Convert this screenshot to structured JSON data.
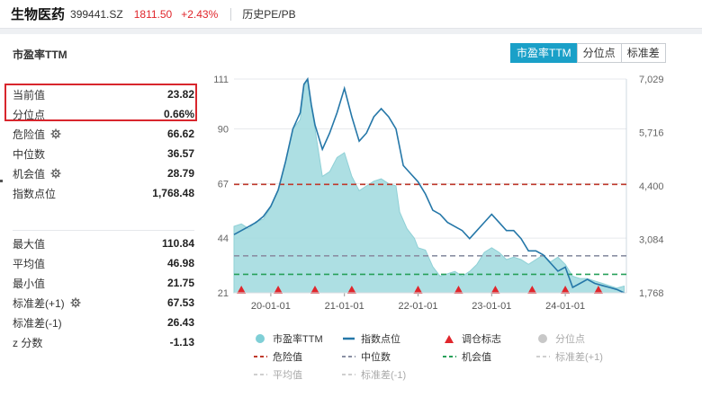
{
  "header": {
    "name": "生物医药",
    "code": "399441.SZ",
    "price": "1811.50",
    "change": "+2.43%",
    "history_link": "历史PE/PB"
  },
  "section_title": "市盈率TTM",
  "tabs": [
    "市盈率TTM",
    "分位点",
    "标准差"
  ],
  "stats_top": [
    {
      "label": "当前值",
      "value": "23.82",
      "gear": false
    },
    {
      "label": "分位点",
      "value": "0.66%",
      "gear": false
    },
    {
      "label": "危险值",
      "value": "66.62",
      "gear": true
    },
    {
      "label": "中位数",
      "value": "36.57",
      "gear": false
    },
    {
      "label": "机会值",
      "value": "28.79",
      "gear": true
    },
    {
      "label": "指数点位",
      "value": "1,768.48",
      "gear": false
    }
  ],
  "stats_bottom": [
    {
      "label": "最大值",
      "value": "110.84",
      "gear": false
    },
    {
      "label": "平均值",
      "value": "46.98",
      "gear": false
    },
    {
      "label": "最小值",
      "value": "21.75",
      "gear": false
    },
    {
      "label": "标准差(+1)",
      "value": "67.53",
      "gear": true
    },
    {
      "label": "标准差(-1)",
      "value": "26.43",
      "gear": false
    },
    {
      "label": "z 分数",
      "value": "-1.13",
      "gear": false
    }
  ],
  "legend": [
    {
      "label": "市盈率TTM",
      "kind": "dot",
      "color": "#7fcfd6",
      "dim": false
    },
    {
      "label": "指数点位",
      "kind": "line",
      "color": "#2577a8",
      "dim": false
    },
    {
      "label": "调仓标志",
      "kind": "triangle",
      "color": "#e0262c",
      "dim": false
    },
    {
      "label": "分位点",
      "kind": "dot",
      "color": "#c8c8c8",
      "dim": true
    },
    {
      "label": "危险值",
      "kind": "dash",
      "color": "#c0392b",
      "dim": false
    },
    {
      "label": "中位数",
      "kind": "dash",
      "color": "#8a8fa3",
      "dim": false
    },
    {
      "label": "机会值",
      "kind": "dash",
      "color": "#27a05a",
      "dim": false
    },
    {
      "label": "标准差(+1)",
      "kind": "dash",
      "color": "#cfcfcf",
      "dim": true
    },
    {
      "label": "平均值",
      "kind": "dash",
      "color": "#cfcfcf",
      "dim": true
    },
    {
      "label": "标准差(-1)",
      "kind": "dash",
      "color": "#cfcfcf",
      "dim": true
    }
  ],
  "colors": {
    "accent": "#1aa0c8",
    "up": "#e0262c",
    "pe_fill": "#9fd9de",
    "index_line": "#2577a8",
    "danger": "#c0392b",
    "median": "#8a8fa3",
    "opportunity": "#27a05a"
  },
  "chart_data": {
    "type": "area",
    "x_ticks": [
      "20-01-01",
      "21-01-01",
      "22-01-01",
      "23-01-01",
      "24-01-01"
    ],
    "y_left_ticks": [
      "21",
      "44",
      "67",
      "90",
      "111"
    ],
    "y_right_ticks": [
      "1,768",
      "3,084",
      "4,400",
      "5,716",
      "7,029"
    ],
    "y_left_range": [
      21,
      111
    ],
    "y_right_range": [
      1768,
      7029
    ],
    "x_range": [
      2019.5,
      2024.83
    ],
    "reference_lines": [
      {
        "name": "危险值",
        "value": 66.62,
        "color": "#c0392b"
      },
      {
        "name": "中位数",
        "value": 36.57,
        "color": "#8a8fa3"
      },
      {
        "name": "机会值",
        "value": 28.79,
        "color": "#27a05a"
      }
    ],
    "series": [
      {
        "name": "市盈率TTM",
        "axis": "left",
        "points": [
          [
            2019.5,
            49
          ],
          [
            2019.6,
            50
          ],
          [
            2019.7,
            48
          ],
          [
            2019.8,
            51
          ],
          [
            2019.9,
            52
          ],
          [
            2020.0,
            57
          ],
          [
            2020.1,
            64
          ],
          [
            2020.2,
            76
          ],
          [
            2020.3,
            90
          ],
          [
            2020.4,
            94
          ],
          [
            2020.45,
            108
          ],
          [
            2020.5,
            111
          ],
          [
            2020.55,
            99
          ],
          [
            2020.6,
            90
          ],
          [
            2020.7,
            70
          ],
          [
            2020.8,
            72
          ],
          [
            2020.9,
            78
          ],
          [
            2021.0,
            80
          ],
          [
            2021.1,
            70
          ],
          [
            2021.2,
            64
          ],
          [
            2021.3,
            66
          ],
          [
            2021.4,
            68
          ],
          [
            2021.5,
            69
          ],
          [
            2021.6,
            67
          ],
          [
            2021.7,
            66
          ],
          [
            2021.75,
            55
          ],
          [
            2021.85,
            48
          ],
          [
            2021.95,
            44
          ],
          [
            2022.0,
            40
          ],
          [
            2022.1,
            39
          ],
          [
            2022.2,
            32
          ],
          [
            2022.3,
            28
          ],
          [
            2022.4,
            29
          ],
          [
            2022.5,
            30
          ],
          [
            2022.6,
            28
          ],
          [
            2022.7,
            30
          ],
          [
            2022.8,
            33
          ],
          [
            2022.9,
            38
          ],
          [
            2023.0,
            40
          ],
          [
            2023.1,
            38
          ],
          [
            2023.2,
            35
          ],
          [
            2023.3,
            36
          ],
          [
            2023.4,
            35
          ],
          [
            2023.5,
            33
          ],
          [
            2023.6,
            35
          ],
          [
            2023.7,
            37
          ],
          [
            2023.8,
            34
          ],
          [
            2023.9,
            36
          ],
          [
            2024.0,
            33
          ],
          [
            2024.1,
            28
          ],
          [
            2024.2,
            27
          ],
          [
            2024.3,
            27
          ],
          [
            2024.4,
            26
          ],
          [
            2024.5,
            25
          ],
          [
            2024.6,
            24
          ],
          [
            2024.7,
            23
          ],
          [
            2024.8,
            23.82
          ]
        ]
      },
      {
        "name": "指数点位",
        "axis": "right",
        "points": [
          [
            2019.5,
            3200
          ],
          [
            2019.6,
            3300
          ],
          [
            2019.7,
            3400
          ],
          [
            2019.8,
            3500
          ],
          [
            2019.9,
            3650
          ],
          [
            2020.0,
            3900
          ],
          [
            2020.1,
            4300
          ],
          [
            2020.2,
            5000
          ],
          [
            2020.3,
            5800
          ],
          [
            2020.4,
            6200
          ],
          [
            2020.45,
            6900
          ],
          [
            2020.5,
            7029
          ],
          [
            2020.55,
            6400
          ],
          [
            2020.6,
            5900
          ],
          [
            2020.7,
            5300
          ],
          [
            2020.8,
            5700
          ],
          [
            2020.9,
            6200
          ],
          [
            2021.0,
            6800
          ],
          [
            2021.1,
            6100
          ],
          [
            2021.2,
            5500
          ],
          [
            2021.3,
            5700
          ],
          [
            2021.4,
            6100
          ],
          [
            2021.5,
            6300
          ],
          [
            2021.6,
            6100
          ],
          [
            2021.7,
            5800
          ],
          [
            2021.8,
            4900
          ],
          [
            2021.9,
            4700
          ],
          [
            2022.0,
            4500
          ],
          [
            2022.1,
            4200
          ],
          [
            2022.2,
            3800
          ],
          [
            2022.3,
            3700
          ],
          [
            2022.4,
            3500
          ],
          [
            2022.5,
            3400
          ],
          [
            2022.6,
            3300
          ],
          [
            2022.7,
            3100
          ],
          [
            2022.8,
            3300
          ],
          [
            2022.9,
            3500
          ],
          [
            2023.0,
            3700
          ],
          [
            2023.1,
            3500
          ],
          [
            2023.2,
            3300
          ],
          [
            2023.3,
            3300
          ],
          [
            2023.4,
            3100
          ],
          [
            2023.5,
            2800
          ],
          [
            2023.6,
            2800
          ],
          [
            2023.7,
            2700
          ],
          [
            2023.8,
            2500
          ],
          [
            2023.9,
            2300
          ],
          [
            2024.0,
            2400
          ],
          [
            2024.1,
            1900
          ],
          [
            2024.2,
            2000
          ],
          [
            2024.3,
            2100
          ],
          [
            2024.4,
            2000
          ],
          [
            2024.5,
            1950
          ],
          [
            2024.6,
            1900
          ],
          [
            2024.7,
            1850
          ],
          [
            2024.8,
            1768
          ]
        ]
      }
    ],
    "rebalance_markers": [
      2019.6,
      2020.1,
      2020.6,
      2021.1,
      2022.0,
      2022.55,
      2023.05,
      2023.55,
      2024.0,
      2024.45
    ]
  }
}
